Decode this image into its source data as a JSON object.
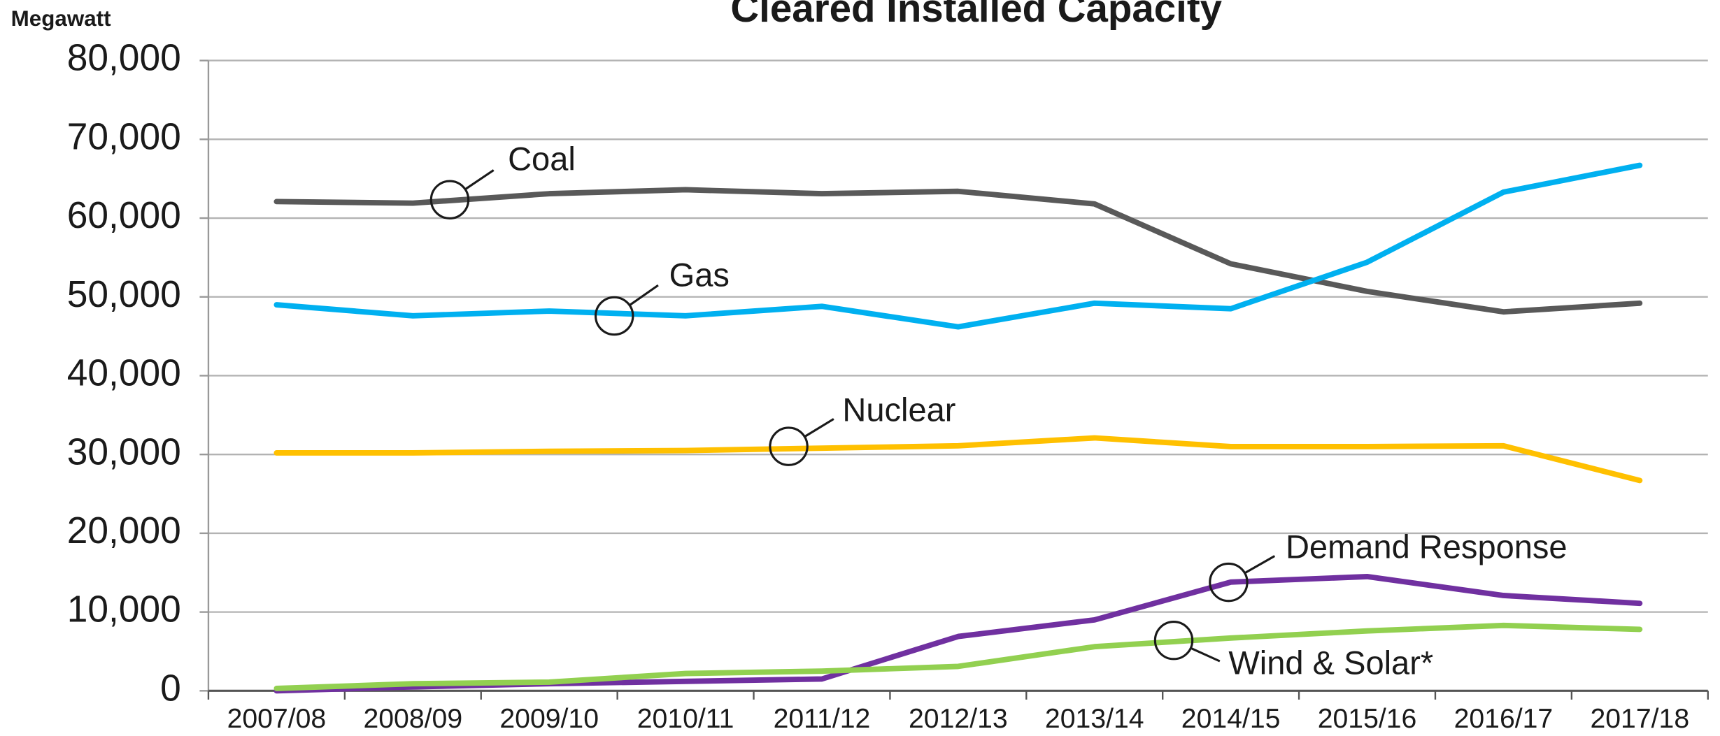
{
  "chart_data": {
    "type": "line",
    "title": "Cleared Installed Capacity",
    "y_label": "Megawatt",
    "categories": [
      "2007/08",
      "2008/09",
      "2009/10",
      "2010/11",
      "2011/12",
      "2012/13",
      "2013/14",
      "2014/15",
      "2015/16",
      "2016/17",
      "2017/18"
    ],
    "series": [
      {
        "name": "Coal",
        "color": "#595959",
        "values": [
          62100,
          61900,
          63100,
          63600,
          63100,
          63400,
          61800,
          54200,
          50700,
          48100,
          49200
        ]
      },
      {
        "name": "Gas",
        "color": "#00b0f0",
        "values": [
          49000,
          47600,
          48200,
          47600,
          48800,
          46200,
          49200,
          48500,
          54400,
          63300,
          66700
        ]
      },
      {
        "name": "Nuclear",
        "color": "#ffc000",
        "values": [
          30200,
          30200,
          30400,
          30500,
          30800,
          31100,
          32100,
          31000,
          31000,
          31100,
          26700
        ]
      },
      {
        "name": "Demand Response",
        "color": "#7030a0",
        "values": [
          0,
          500,
          900,
          1200,
          1500,
          6900,
          9000,
          13800,
          14500,
          12100,
          11100
        ]
      },
      {
        "name": "Wind & Solar*",
        "color": "#92d050",
        "values": [
          300,
          900,
          1100,
          2200,
          2500,
          3100,
          5600,
          6700,
          7600,
          8300,
          7800
        ]
      }
    ],
    "ylim": [
      0,
      80000
    ],
    "yticks": [
      0,
      {
        "value": 10000,
        "label": "10,000"
      },
      {
        "value": 20000,
        "label": "20,000"
      },
      {
        "value": 30000,
        "label": "30,000"
      },
      {
        "value": 40000,
        "label": "40,000"
      },
      {
        "value": 50000,
        "label": "50,000"
      },
      {
        "value": 60000,
        "label": "60,000"
      },
      {
        "value": 70000,
        "label": "70,000"
      },
      {
        "value": 80000,
        "label": "80,000"
      }
    ],
    "grid": true
  }
}
